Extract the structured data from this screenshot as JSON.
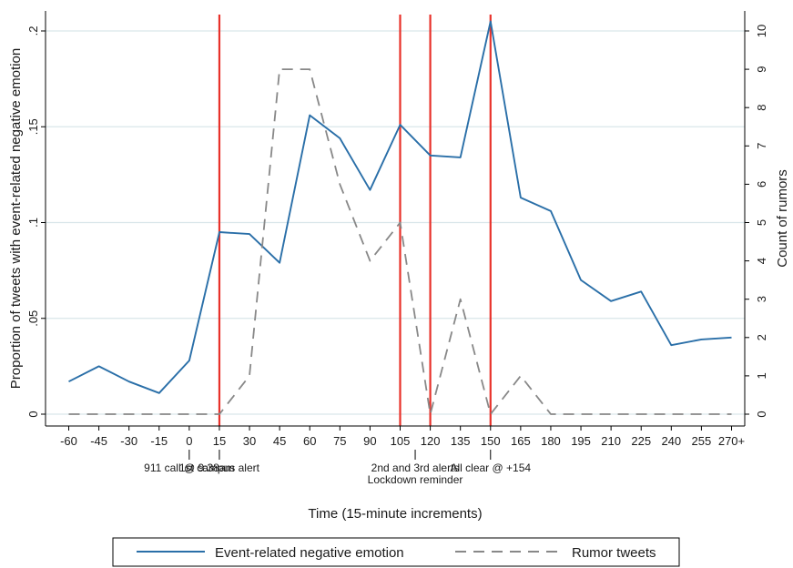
{
  "chart_data": {
    "type": "line",
    "x_categories": [
      "-60",
      "-45",
      "-30",
      "-15",
      "0",
      "15",
      "30",
      "45",
      "60",
      "75",
      "90",
      "105",
      "120",
      "135",
      "150",
      "165",
      "180",
      "195",
      "210",
      "225",
      "240",
      "255",
      "270+"
    ],
    "xlabel": "Time (15-minute increments)",
    "ylabel_left": "Proportion of tweets with event-related negative emotion",
    "ylabel_right": "Count of rumors",
    "y_left_ticks": [
      {
        "value": 0,
        "label": "0"
      },
      {
        "value": 0.05,
        "label": ".05"
      },
      {
        "value": 0.1,
        "label": ".1"
      },
      {
        "value": 0.15,
        "label": ".15"
      },
      {
        "value": 0.2,
        "label": ".2"
      }
    ],
    "y_right_ticks": [
      {
        "value": 0,
        "label": "0"
      },
      {
        "value": 1,
        "label": "1"
      },
      {
        "value": 2,
        "label": "2"
      },
      {
        "value": 3,
        "label": "3"
      },
      {
        "value": 4,
        "label": "4"
      },
      {
        "value": 5,
        "label": "5"
      },
      {
        "value": 6,
        "label": "6"
      },
      {
        "value": 7,
        "label": "7"
      },
      {
        "value": 8,
        "label": "8"
      },
      {
        "value": 9,
        "label": "9"
      },
      {
        "value": 10,
        "label": "10"
      }
    ],
    "ylim_left": [
      0,
      0.2
    ],
    "ylim_right": [
      0,
      10
    ],
    "grid": "horizontal",
    "legend_position": "bottom",
    "series": [
      {
        "name": "Event-related negative emotion",
        "axis": "left",
        "style": "solid",
        "color": "#2a6fa8",
        "values": [
          0.017,
          0.025,
          0.017,
          0.011,
          0.028,
          0.095,
          0.094,
          0.079,
          0.156,
          0.144,
          0.117,
          0.151,
          0.135,
          0.134,
          0.205,
          0.113,
          0.106,
          0.07,
          0.059,
          0.064,
          0.036,
          0.039,
          0.04
        ]
      },
      {
        "name": "Rumor tweets",
        "axis": "right",
        "style": "dashed",
        "color": "#888888",
        "values": [
          0,
          0,
          0,
          0,
          0,
          0,
          1,
          9,
          9,
          6,
          4,
          5,
          0,
          3,
          0,
          1,
          0,
          0,
          0,
          0,
          0,
          0,
          0
        ]
      }
    ],
    "event_markers": [
      {
        "x": "15",
        "color": "#e8312a"
      },
      {
        "x": "105",
        "color": "#e8312a"
      },
      {
        "x": "120",
        "color": "#e8312a"
      },
      {
        "x": "150",
        "color": "#e8312a"
      }
    ],
    "annotations": [
      {
        "x": "0",
        "lines": [
          "911 call @ 9:38am"
        ]
      },
      {
        "x": "15",
        "lines": [
          "1st campus alert"
        ]
      },
      {
        "x": "112.5",
        "lines": [
          "2nd and 3rd alerts",
          "Lockdown reminder"
        ]
      },
      {
        "x": "150",
        "lines": [
          "All clear @ +154"
        ]
      }
    ]
  }
}
